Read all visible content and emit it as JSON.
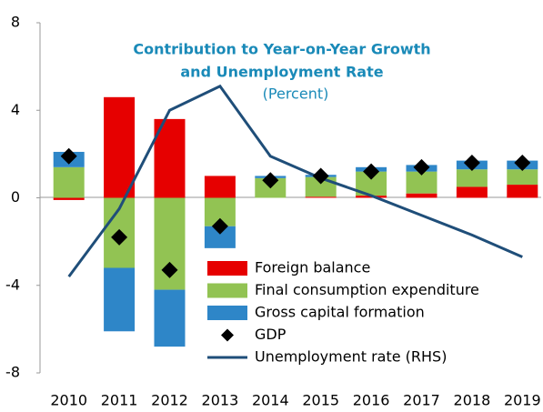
{
  "chart_data": {
    "type": "combo",
    "title": [
      "Contribution to Year-on-Year Growth",
      "and Unemployment Rate"
    ],
    "subtitle": "(Percent)",
    "categories": [
      "2010",
      "2011",
      "2012",
      "2013",
      "2014",
      "2015",
      "2016",
      "2017",
      "2018",
      "2019"
    ],
    "ylim": [
      -8,
      8
    ],
    "yticks": [
      8,
      4,
      0,
      -4,
      -8
    ],
    "y2lim": [
      -8,
      8
    ],
    "series": [
      {
        "name": "Foreign balance",
        "type": "bar",
        "color": "#e60000",
        "values": [
          -0.1,
          4.6,
          3.6,
          1.0,
          0.0,
          0.05,
          0.1,
          0.2,
          0.5,
          0.6
        ]
      },
      {
        "name": "Final consumption expenditure",
        "type": "bar",
        "color": "#92c353",
        "values": [
          1.4,
          -3.2,
          -4.2,
          -1.3,
          0.9,
          0.9,
          1.1,
          1.0,
          0.8,
          0.7
        ]
      },
      {
        "name": "Gross capital formation",
        "type": "bar",
        "color": "#2e86c8",
        "values": [
          0.7,
          -2.9,
          -2.6,
          -1.0,
          0.1,
          0.1,
          0.2,
          0.3,
          0.4,
          0.4
        ]
      },
      {
        "name": "GDP",
        "type": "diamond",
        "color": "#000000",
        "values": [
          1.9,
          -1.8,
          -3.3,
          -1.3,
          0.8,
          1.0,
          1.2,
          1.4,
          1.6,
          1.6
        ]
      },
      {
        "name": "Unemployment rate (RHS)",
        "type": "line",
        "axis": "y2",
        "color": "#1f4e79",
        "values": [
          -3.6,
          -0.5,
          4.0,
          5.1,
          1.9,
          0.9,
          0.1,
          -0.8,
          -1.7,
          -2.7
        ]
      }
    ]
  }
}
